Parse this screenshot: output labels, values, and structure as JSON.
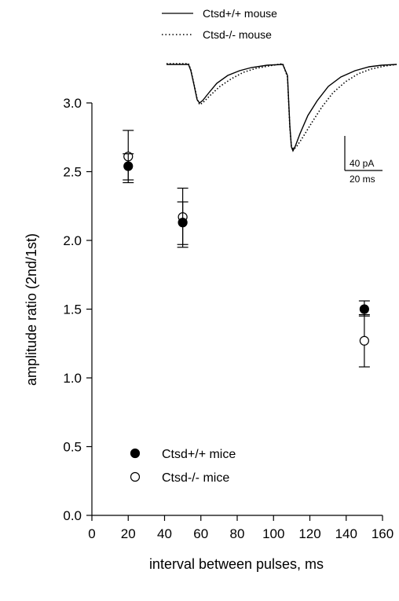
{
  "chart_data": {
    "type": "scatter",
    "xlabel": "interval between pulses, ms",
    "ylabel": "amplitude ratio (2nd/1st)",
    "xlim": [
      0,
      160
    ],
    "ylim": [
      0.0,
      3.0
    ],
    "x_ticks": [
      0,
      20,
      40,
      60,
      80,
      100,
      120,
      140,
      160
    ],
    "y_ticks": [
      "0.0",
      "0.5",
      "1.0",
      "1.5",
      "2.0",
      "2.5",
      "3.0"
    ],
    "grid": false,
    "legend_position": "bottom-left",
    "series": [
      {
        "name": "Ctsd+/+ mice",
        "marker": "filled-circle",
        "x": [
          20,
          50,
          150
        ],
        "y": [
          2.54,
          2.13,
          1.5
        ],
        "error_lower": [
          2.44,
          1.95,
          1.45
        ],
        "error_upper": [
          2.63,
          2.28,
          1.56
        ]
      },
      {
        "name": "Ctsd-/- mice",
        "marker": "open-circle",
        "x": [
          20,
          50,
          150
        ],
        "y": [
          2.61,
          2.17,
          1.27
        ],
        "error_lower": [
          2.42,
          1.97,
          1.08
        ],
        "error_upper": [
          2.8,
          2.38,
          1.46
        ]
      }
    ]
  },
  "inset": {
    "legend": [
      {
        "label": "Ctsd+/+ mouse",
        "style": "solid"
      },
      {
        "label": "Ctsd-/- mouse",
        "style": "dotted"
      }
    ],
    "scale_bar": {
      "vertical_label": "40 pA",
      "horizontal_label": "20 ms"
    }
  },
  "colors": {
    "ink": "#000000",
    "background": "#ffffff"
  }
}
